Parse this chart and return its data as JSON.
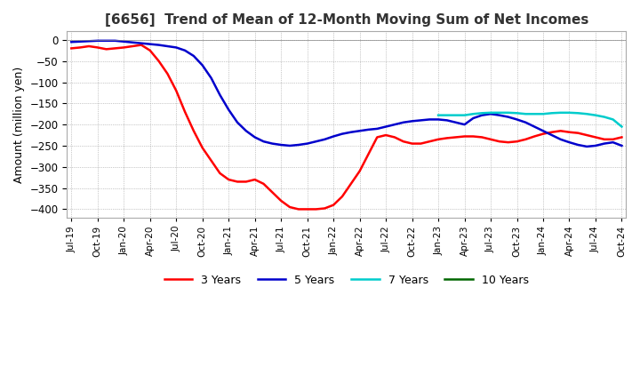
{
  "title": "[6656]  Trend of Mean of 12-Month Moving Sum of Net Incomes",
  "ylabel": "Amount (million yen)",
  "ylim": [
    -420,
    20
  ],
  "yticks": [
    0,
    -50,
    -100,
    -150,
    -200,
    -250,
    -300,
    -350,
    -400
  ],
  "background_color": "#ffffff",
  "grid_color": "#999999",
  "line_colors": {
    "3y": "#ff0000",
    "5y": "#0000cc",
    "7y": "#00cccc",
    "10y": "#006600"
  },
  "legend": [
    "3 Years",
    "5 Years",
    "7 Years",
    "10 Years"
  ],
  "x_labels": [
    "Jul-19",
    "Oct-19",
    "Jan-20",
    "Apr-20",
    "Jul-20",
    "Oct-20",
    "Jan-21",
    "Apr-21",
    "Jul-21",
    "Oct-21",
    "Jan-22",
    "Apr-22",
    "Jul-22",
    "Oct-22",
    "Jan-23",
    "Apr-23",
    "Jul-23",
    "Oct-23",
    "Jan-24",
    "Apr-24",
    "Jul-24",
    "Oct-24"
  ],
  "n_points": 64,
  "3y": [
    -20,
    -18,
    -15,
    -18,
    -22,
    -20,
    -18,
    -15,
    -12,
    -25,
    -50,
    -80,
    -120,
    -170,
    -215,
    -255,
    -285,
    -315,
    -330,
    -335,
    -335,
    -330,
    -340,
    -360,
    -380,
    -395,
    -400,
    -400,
    -400,
    -398,
    -390,
    -370,
    -340,
    -310,
    -270,
    -230,
    -225,
    -230,
    -240,
    -245,
    -245,
    -240,
    -235,
    -232,
    -230,
    -228,
    -228,
    -230,
    -235,
    -240,
    -242,
    -240,
    -235,
    -228,
    -222,
    -218,
    -215,
    -218,
    -220,
    -225,
    -230,
    -235,
    -235,
    -230
  ],
  "5y": [
    -5,
    -4,
    -3,
    -2,
    -2,
    -2,
    -4,
    -6,
    -8,
    -10,
    -12,
    -15,
    -18,
    -25,
    -38,
    -60,
    -90,
    -130,
    -165,
    -195,
    -215,
    -230,
    -240,
    -245,
    -248,
    -250,
    -248,
    -245,
    -240,
    -235,
    -228,
    -222,
    -218,
    -215,
    -212,
    -210,
    -205,
    -200,
    -195,
    -192,
    -190,
    -188,
    -188,
    -190,
    -195,
    -200,
    -185,
    -178,
    -175,
    -178,
    -182,
    -188,
    -195,
    -205,
    -215,
    -225,
    -235,
    -242,
    -248,
    -252,
    -250,
    -245,
    -242,
    -250
  ],
  "7y": [
    null,
    null,
    null,
    null,
    null,
    null,
    null,
    null,
    null,
    null,
    null,
    null,
    null,
    null,
    null,
    null,
    null,
    null,
    null,
    null,
    null,
    null,
    null,
    null,
    null,
    null,
    null,
    null,
    null,
    null,
    null,
    null,
    null,
    null,
    null,
    null,
    null,
    null,
    null,
    null,
    null,
    null,
    -178,
    -178,
    -178,
    -178,
    -175,
    -173,
    -172,
    -172,
    -172,
    -173,
    -175,
    -175,
    -175,
    -173,
    -172,
    -172,
    -173,
    -175,
    -178,
    -182,
    -188,
    -205
  ],
  "10y": [
    null,
    null,
    null,
    null,
    null,
    null,
    null,
    null,
    null,
    null,
    null,
    null,
    null,
    null,
    null,
    null,
    null,
    null,
    null,
    null,
    null,
    null,
    null,
    null,
    null,
    null,
    null,
    null,
    null,
    null,
    null,
    null,
    null,
    null,
    null,
    null,
    null,
    null,
    null,
    null,
    null,
    null,
    null,
    null,
    null,
    null,
    null,
    null,
    null,
    null,
    null,
    null,
    null,
    null,
    null,
    null,
    null,
    null,
    null,
    null,
    null,
    null,
    null,
    null
  ]
}
